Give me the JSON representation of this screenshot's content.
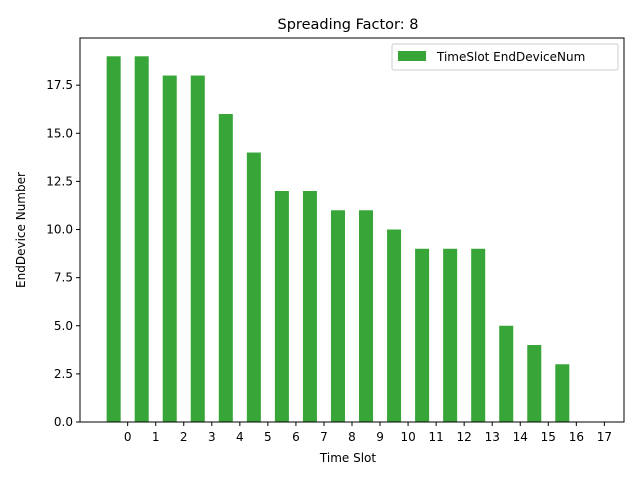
{
  "chart_data": {
    "type": "bar",
    "title": "Spreading Factor: 8",
    "xlabel": "Time Slot",
    "ylabel": "EndDevice Number",
    "bar_color": "#2ca02c",
    "x": [
      -0.5,
      0.5,
      1.5,
      2.5,
      3.5,
      4.5,
      5.5,
      6.5,
      7.5,
      8.5,
      9.5,
      10.5,
      11.5,
      12.5,
      13.5,
      14.5,
      15.5
    ],
    "values": [
      19,
      19,
      18,
      18,
      16,
      14,
      12,
      12,
      11,
      11,
      10,
      9,
      9,
      9,
      5,
      4,
      3
    ],
    "x_ticks": [
      0,
      1,
      2,
      3,
      4,
      5,
      6,
      7,
      8,
      9,
      10,
      11,
      12,
      13,
      14,
      15,
      16,
      17
    ],
    "x_tick_labels": [
      "0",
      "1",
      "2",
      "3",
      "4",
      "5",
      "6",
      "7",
      "8",
      "9",
      "10",
      "11",
      "12",
      "13",
      "14",
      "15",
      "16",
      "17"
    ],
    "y_ticks": [
      0,
      2.5,
      5,
      7.5,
      10,
      12.5,
      15,
      17.5
    ],
    "y_tick_labels": [
      "0.0",
      "2.5",
      "5.0",
      "7.5",
      "10.0",
      "12.5",
      "15.0",
      "17.5"
    ],
    "xlim": [
      -1.7,
      17.7
    ],
    "ylim": [
      0,
      19.95
    ],
    "legend": {
      "label": "TimeSlot EndDeviceNum",
      "placement": "top-right"
    },
    "grid": false
  }
}
